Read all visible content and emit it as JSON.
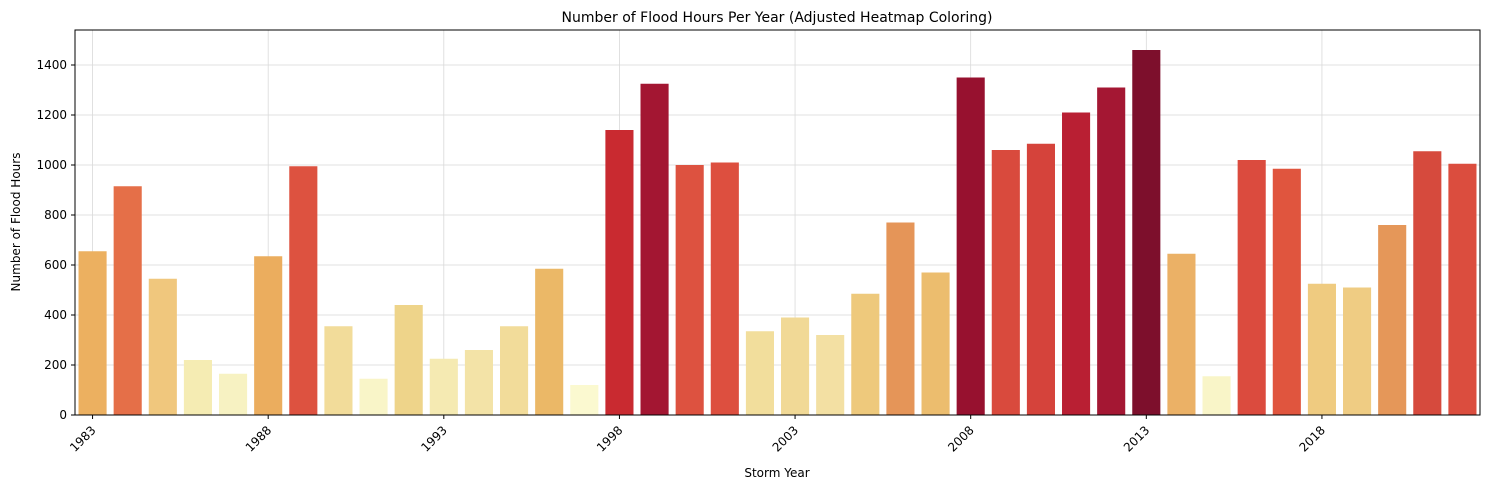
{
  "chart_data": {
    "type": "bar",
    "title": "Number of Flood Hours Per Year (Adjusted Heatmap Coloring)",
    "xlabel": "Storm Year",
    "ylabel": "Number of Flood Hours",
    "grid": true,
    "categories": [
      1983,
      1984,
      1985,
      1986,
      1987,
      1988,
      1989,
      1990,
      1991,
      1992,
      1993,
      1994,
      1995,
      1996,
      1997,
      1998,
      1999,
      2000,
      2001,
      2002,
      2003,
      2004,
      2005,
      2006,
      2007,
      2008,
      2009,
      2010,
      2011,
      2012,
      2013,
      2014,
      2015,
      2016,
      2017,
      2018,
      2019,
      2020,
      2021,
      2022
    ],
    "values": [
      655,
      915,
      545,
      220,
      165,
      635,
      995,
      355,
      145,
      440,
      225,
      260,
      355,
      585,
      120,
      1140,
      1325,
      1000,
      1010,
      335,
      390,
      320,
      485,
      770,
      570,
      1350,
      1060,
      1085,
      1210,
      1310,
      1460,
      645,
      155,
      1020,
      985,
      525,
      510,
      760,
      1055,
      1005
    ],
    "colors": [
      "#ecb060",
      "#e56f48",
      "#f0c77d",
      "#f5ecb3",
      "#f7f2c2",
      "#ebad5e",
      "#dd5240",
      "#f2dc9a",
      "#f9f5c8",
      "#eed48a",
      "#f5eab2",
      "#f3e3a7",
      "#f2dc9a",
      "#ebb867",
      "#fbf9d0",
      "#c92a30",
      "#a31632",
      "#dd5240",
      "#dd4f3f",
      "#f2de9c",
      "#f1d996",
      "#f3e0a3",
      "#eec97c",
      "#e59558",
      "#ecbd6e",
      "#97112f",
      "#d94a3d",
      "#d5433b",
      "#b91f33",
      "#a41733",
      "#7d0f2c",
      "#ebb166",
      "#f9f5c8",
      "#db4b3e",
      "#e0553e",
      "#efcb80",
      "#efcc83",
      "#e59759",
      "#d64a3d",
      "#db4d3e"
    ],
    "ylim": [
      0,
      1540
    ],
    "yticks": [
      0,
      200,
      400,
      600,
      800,
      1000,
      1200,
      1400
    ],
    "xticks": [
      1983,
      1988,
      1993,
      1998,
      2003,
      2008,
      2013,
      2018
    ],
    "xtick_rotation": 45
  }
}
